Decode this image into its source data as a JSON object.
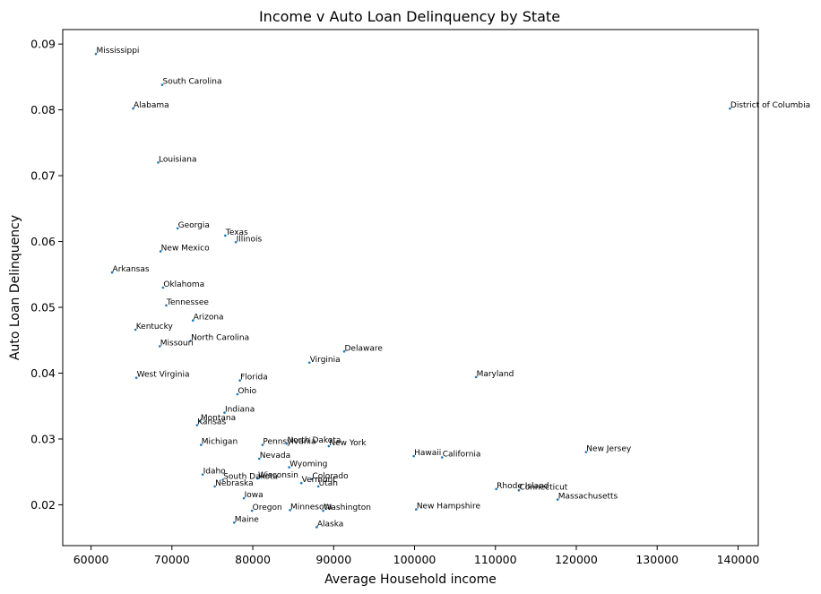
{
  "chart_data": {
    "type": "scatter",
    "title": "Income v Auto Loan Delinquency by State",
    "xlabel": "Average Household income",
    "ylabel": "Auto Loan Delinquency",
    "xlim": [
      56500,
      142500
    ],
    "ylim": [
      0.0138,
      0.0922
    ],
    "xticks": [
      60000,
      70000,
      80000,
      90000,
      100000,
      110000,
      120000,
      130000,
      140000
    ],
    "xtick_labels": [
      "60000",
      "70000",
      "80000",
      "90000",
      "100000",
      "110000",
      "120000",
      "130000",
      "140000"
    ],
    "yticks": [
      0.02,
      0.03,
      0.04,
      0.05,
      0.06,
      0.07,
      0.08,
      0.09
    ],
    "ytick_labels": [
      "0.02",
      "0.03",
      "0.04",
      "0.05",
      "0.06",
      "0.07",
      "0.08",
      "0.09"
    ],
    "grid": false,
    "marker_color": "#1f77b4",
    "points": [
      {
        "label": "Mississippi",
        "x": 60600,
        "y": 0.0885
      },
      {
        "label": "South Carolina",
        "x": 68800,
        "y": 0.0838
      },
      {
        "label": "Alabama",
        "x": 65200,
        "y": 0.0802
      },
      {
        "label": "District of Columbia",
        "x": 139000,
        "y": 0.0802
      },
      {
        "label": "Louisiana",
        "x": 68300,
        "y": 0.072
      },
      {
        "label": "Georgia",
        "x": 70700,
        "y": 0.062
      },
      {
        "label": "Texas",
        "x": 76600,
        "y": 0.0609
      },
      {
        "label": "Illinois",
        "x": 77900,
        "y": 0.0599
      },
      {
        "label": "New Mexico",
        "x": 68600,
        "y": 0.0585
      },
      {
        "label": "Arkansas",
        "x": 62600,
        "y": 0.0553
      },
      {
        "label": "Oklahoma",
        "x": 68900,
        "y": 0.053
      },
      {
        "label": "Tennessee",
        "x": 69300,
        "y": 0.0503
      },
      {
        "label": "Arizona",
        "x": 72600,
        "y": 0.048
      },
      {
        "label": "Kentucky",
        "x": 65500,
        "y": 0.0466
      },
      {
        "label": "North Carolina",
        "x": 72300,
        "y": 0.0449
      },
      {
        "label": "Missouri",
        "x": 68500,
        "y": 0.0441
      },
      {
        "label": "Delaware",
        "x": 91300,
        "y": 0.0433
      },
      {
        "label": "Virginia",
        "x": 87000,
        "y": 0.0416
      },
      {
        "label": "Maryland",
        "x": 107600,
        "y": 0.0394
      },
      {
        "label": "West Virginia",
        "x": 65600,
        "y": 0.0393
      },
      {
        "label": "Florida",
        "x": 78400,
        "y": 0.0389
      },
      {
        "label": "Ohio",
        "x": 78100,
        "y": 0.0368
      },
      {
        "label": "Indiana",
        "x": 76500,
        "y": 0.034
      },
      {
        "label": "Montana",
        "x": 73500,
        "y": 0.0327
      },
      {
        "label": "Kansas",
        "x": 73100,
        "y": 0.0321
      },
      {
        "label": "Michigan",
        "x": 73600,
        "y": 0.0291
      },
      {
        "label": "Pennsylvania",
        "x": 81200,
        "y": 0.0291
      },
      {
        "label": "North Dakota",
        "x": 84200,
        "y": 0.0293
      },
      {
        "label": "New York",
        "x": 89400,
        "y": 0.0289
      },
      {
        "label": "Hawaii",
        "x": 99900,
        "y": 0.0274
      },
      {
        "label": "California",
        "x": 103400,
        "y": 0.0272
      },
      {
        "label": "New Jersey",
        "x": 121200,
        "y": 0.028
      },
      {
        "label": "Nevada",
        "x": 80800,
        "y": 0.027
      },
      {
        "label": "Wyoming",
        "x": 84500,
        "y": 0.0257
      },
      {
        "label": "Idaho",
        "x": 73800,
        "y": 0.0246
      },
      {
        "label": "Wisconsin",
        "x": 80600,
        "y": 0.024
      },
      {
        "label": "South Dakota",
        "x": 76300,
        "y": 0.0238
      },
      {
        "label": "Colorado",
        "x": 87300,
        "y": 0.0239
      },
      {
        "label": "Vermont",
        "x": 86000,
        "y": 0.0233
      },
      {
        "label": "Utah",
        "x": 88100,
        "y": 0.0228
      },
      {
        "label": "Nebraska",
        "x": 75300,
        "y": 0.0228
      },
      {
        "label": "Rhode Island",
        "x": 110100,
        "y": 0.0224
      },
      {
        "label": "Connecticut",
        "x": 112900,
        "y": 0.0222
      },
      {
        "label": "Massachusetts",
        "x": 117700,
        "y": 0.0208
      },
      {
        "label": "Iowa",
        "x": 78900,
        "y": 0.021
      },
      {
        "label": "Oregon",
        "x": 79900,
        "y": 0.0191
      },
      {
        "label": "Minnesota",
        "x": 84600,
        "y": 0.0192
      },
      {
        "label": "Washington",
        "x": 88700,
        "y": 0.0191
      },
      {
        "label": "New Hampshire",
        "x": 100200,
        "y": 0.0193
      },
      {
        "label": "Maine",
        "x": 77700,
        "y": 0.0173
      },
      {
        "label": "Alaska",
        "x": 87900,
        "y": 0.0166
      }
    ]
  }
}
